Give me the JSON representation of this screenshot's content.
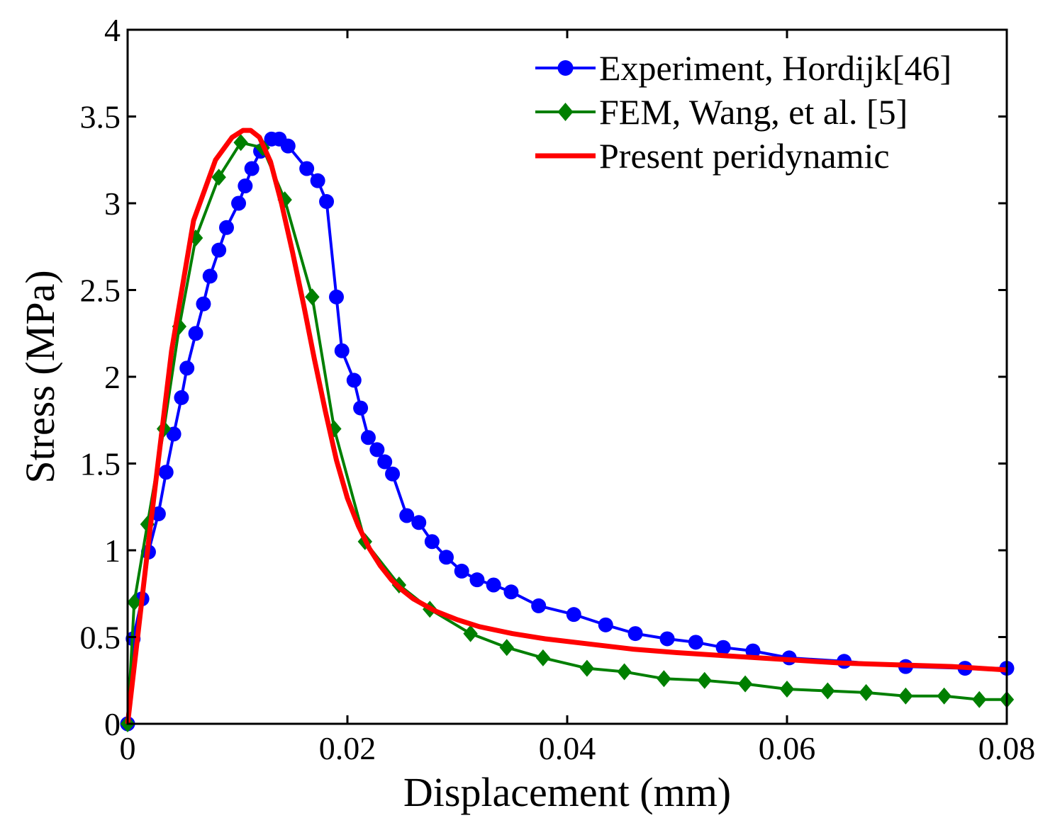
{
  "chart_data": {
    "type": "line",
    "title": "",
    "xlabel": "Displacement (mm)",
    "ylabel": "Stress (MPa)",
    "xlim": [
      0,
      0.08
    ],
    "ylim": [
      0,
      4
    ],
    "grid": false,
    "legend_position": "top-right",
    "x_ticks": [
      0,
      0.02,
      0.04,
      0.06,
      0.08
    ],
    "x_tick_labels": [
      "0",
      "0.02",
      "0.04",
      "0.06",
      "0.08"
    ],
    "y_ticks": [
      0,
      0.5,
      1,
      1.5,
      2,
      2.5,
      3,
      3.5,
      4
    ],
    "y_tick_labels": [
      "0",
      "0.5",
      "1",
      "1.5",
      "2",
      "2.5",
      "3",
      "3.5",
      "4"
    ],
    "series": [
      {
        "name": "Experiment, Hordijk[46]",
        "color": "#0000ff",
        "marker": "circle",
        "x": [
          0.0,
          0.0005,
          0.0013,
          0.0019,
          0.0028,
          0.0035,
          0.0042,
          0.0049,
          0.0054,
          0.0062,
          0.0069,
          0.0075,
          0.0083,
          0.009,
          0.0101,
          0.0107,
          0.0113,
          0.0121,
          0.0131,
          0.0138,
          0.0146,
          0.0163,
          0.0173,
          0.0181,
          0.019,
          0.0195,
          0.0206,
          0.0212,
          0.0219,
          0.0227,
          0.0234,
          0.0241,
          0.0254,
          0.0265,
          0.0277,
          0.029,
          0.0304,
          0.0318,
          0.0333,
          0.0349,
          0.0374,
          0.0406,
          0.0435,
          0.0462,
          0.0491,
          0.0517,
          0.0542,
          0.0569,
          0.0602,
          0.0652,
          0.0708,
          0.0762,
          0.08
        ],
        "y": [
          0.0,
          0.49,
          0.72,
          0.99,
          1.21,
          1.45,
          1.67,
          1.88,
          2.05,
          2.25,
          2.42,
          2.58,
          2.73,
          2.86,
          3.0,
          3.1,
          3.2,
          3.3,
          3.37,
          3.37,
          3.33,
          3.2,
          3.13,
          3.01,
          2.46,
          2.15,
          1.98,
          1.82,
          1.65,
          1.58,
          1.51,
          1.44,
          1.2,
          1.16,
          1.05,
          0.96,
          0.88,
          0.83,
          0.8,
          0.76,
          0.68,
          0.63,
          0.57,
          0.52,
          0.49,
          0.47,
          0.44,
          0.42,
          0.38,
          0.36,
          0.33,
          0.32,
          0.32
        ]
      },
      {
        "name": "FEM, Wang, et al. [5]",
        "color": "#007f00",
        "marker": "diamond",
        "x": [
          0.0,
          0.0006,
          0.0018,
          0.0033,
          0.0047,
          0.0062,
          0.0083,
          0.0103,
          0.0123,
          0.0143,
          0.0168,
          0.0188,
          0.0216,
          0.0247,
          0.0275,
          0.0312,
          0.0345,
          0.0378,
          0.0418,
          0.0452,
          0.0488,
          0.0525,
          0.0562,
          0.06,
          0.0637,
          0.0672,
          0.0708,
          0.0743,
          0.0775,
          0.08
        ],
        "y": [
          0.0,
          0.7,
          1.15,
          1.7,
          2.29,
          2.8,
          3.15,
          3.35,
          3.32,
          3.02,
          2.46,
          1.7,
          1.05,
          0.8,
          0.66,
          0.52,
          0.44,
          0.38,
          0.32,
          0.3,
          0.26,
          0.25,
          0.23,
          0.2,
          0.19,
          0.18,
          0.16,
          0.16,
          0.14,
          0.14
        ]
      },
      {
        "name": "Present peridynamic",
        "color": "#ff0000",
        "marker": "none",
        "x": [
          0.0,
          0.002,
          0.004,
          0.006,
          0.008,
          0.0095,
          0.0105,
          0.0112,
          0.012,
          0.013,
          0.014,
          0.015,
          0.016,
          0.017,
          0.018,
          0.019,
          0.02,
          0.021,
          0.022,
          0.023,
          0.024,
          0.025,
          0.026,
          0.028,
          0.03,
          0.032,
          0.035,
          0.038,
          0.042,
          0.046,
          0.05,
          0.055,
          0.06,
          0.065,
          0.07,
          0.075,
          0.08
        ],
        "y": [
          0.0,
          1.1,
          2.15,
          2.9,
          3.25,
          3.38,
          3.42,
          3.42,
          3.38,
          3.24,
          3.0,
          2.72,
          2.42,
          2.1,
          1.8,
          1.52,
          1.3,
          1.14,
          1.01,
          0.91,
          0.83,
          0.77,
          0.72,
          0.65,
          0.6,
          0.56,
          0.52,
          0.49,
          0.46,
          0.43,
          0.41,
          0.39,
          0.37,
          0.35,
          0.34,
          0.33,
          0.31
        ]
      }
    ]
  }
}
